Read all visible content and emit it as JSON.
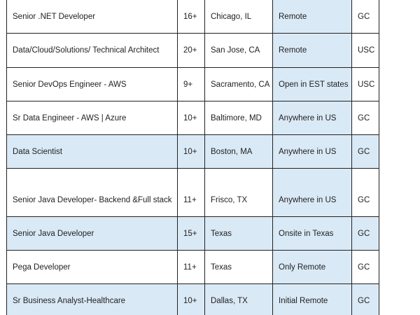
{
  "table": {
    "rows": [
      {
        "title": "Senior .NET Developer",
        "experience": "16+",
        "city": "Chicago, IL",
        "location": "Remote",
        "visa": "GC",
        "shaded": false
      },
      {
        "title": "Data/Cloud/Solutions/ Technical Architect",
        "experience": "20+",
        "city": "San Jose, CA",
        "location": "Remote",
        "visa": "USC",
        "shaded": false
      },
      {
        "title": "Senior DevOps Engineer - AWS",
        "experience": "9+",
        "city": "Sacramento, CA",
        "location": "Open in EST states",
        "visa": "USC",
        "shaded": false
      },
      {
        "title": "Sr Data Engineer - AWS | Azure",
        "experience": "10+",
        "city": "Baltimore, MD",
        "location": "Anywhere in US",
        "visa": "GC",
        "shaded": false
      },
      {
        "title": "Data Scientist",
        "experience": "10+",
        "city": "Boston, MA",
        "location": "Anywhere in US",
        "visa": "GC",
        "shaded": true
      },
      {
        "title": "Senior Java Developer- Backend &Full stack",
        "experience": "11+",
        "city": "Frisco, TX",
        "location": "Anywhere in US",
        "visa": "GC",
        "shaded": false
      },
      {
        "title": "Senior Java Developer",
        "experience": "15+",
        "city": "Texas",
        "location": "Onsite in Texas",
        "visa": "GC",
        "shaded": true
      },
      {
        "title": "Pega Developer",
        "experience": "11+",
        "city": "Texas",
        "location": "Only Remote",
        "visa": "GC",
        "shaded": false
      },
      {
        "title": "Sr Business Analyst-Healthcare",
        "experience": "10+",
        "city": "Dallas, TX",
        "location": "Initial Remote",
        "visa": "GC",
        "shaded": true
      }
    ]
  },
  "colors": {
    "shade": "#dae9f6",
    "border": "#222222",
    "text": "#1f1f1f"
  }
}
